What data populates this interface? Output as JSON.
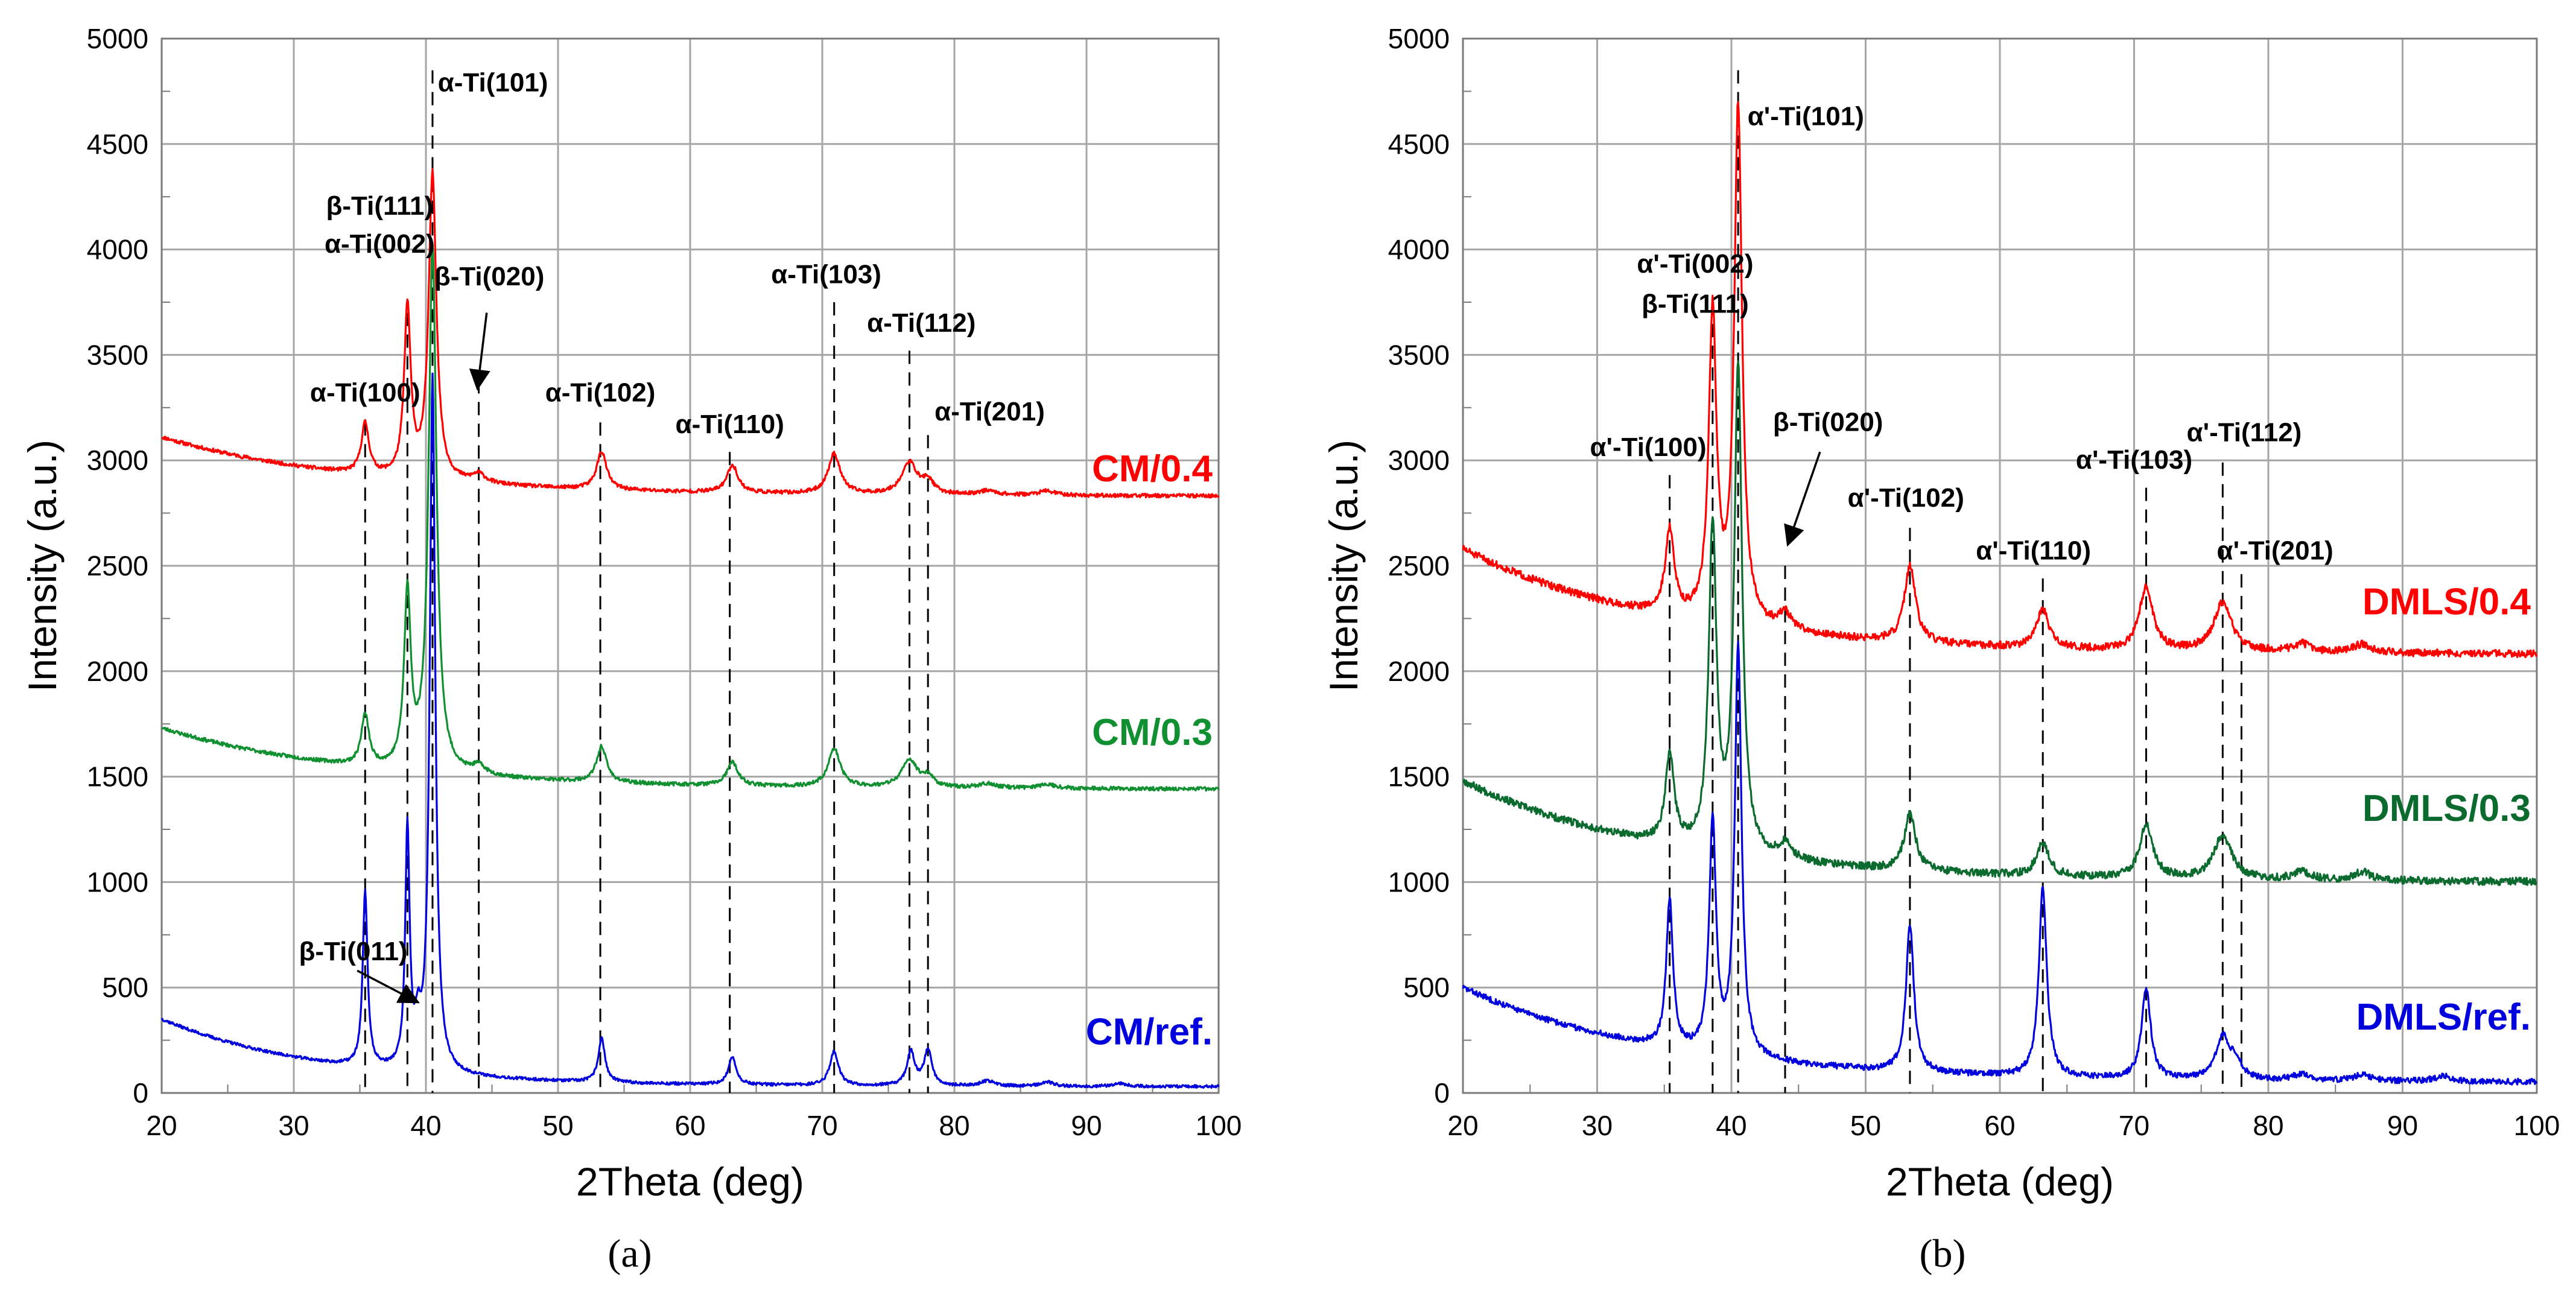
{
  "chart_data": [
    {
      "panel": "(a)",
      "type": "line",
      "xlabel": "2Theta (deg)",
      "ylabel": "Intensity (a.u.)",
      "xlim": [
        20,
        100
      ],
      "ylim": [
        0,
        5000
      ],
      "xticks": [
        20,
        30,
        40,
        50,
        60,
        70,
        80,
        90,
        100
      ],
      "yticks": [
        0,
        500,
        1000,
        1500,
        2000,
        2500,
        3000,
        3500,
        4000,
        4500,
        5000
      ],
      "grid": true,
      "series": [
        {
          "name": "CM/0.4",
          "color": "#ff0000",
          "noise": 9,
          "seed": 11,
          "bg_start": 3110,
          "bg_end": 2830,
          "bg_decay": 15,
          "peaks": [
            [
              35.4,
              240,
              0.35
            ],
            [
              38.6,
              800,
              0.3
            ],
            [
              40.5,
              1450,
              0.35
            ],
            [
              44.0,
              40,
              0.6
            ],
            [
              53.3,
              180,
              0.45
            ],
            [
              63.2,
              130,
              0.5
            ],
            [
              70.9,
              190,
              0.55
            ],
            [
              76.6,
              150,
              0.7
            ],
            [
              78.0,
              60,
              0.5
            ],
            [
              82.5,
              20,
              0.8
            ],
            [
              87.0,
              20,
              0.8
            ]
          ]
        },
        {
          "name": "CM/0.3",
          "color": "#109030",
          "noise": 9,
          "seed": 23,
          "bg_start": 1730,
          "bg_end": 1440,
          "bg_decay": 15,
          "peaks": [
            [
              35.4,
              240,
              0.35
            ],
            [
              38.6,
              820,
              0.3
            ],
            [
              40.5,
              2500,
              0.35
            ],
            [
              44.0,
              40,
              0.6
            ],
            [
              53.3,
              170,
              0.45
            ],
            [
              63.2,
              110,
              0.5
            ],
            [
              70.9,
              180,
              0.55
            ],
            [
              76.6,
              130,
              0.7
            ],
            [
              78.0,
              50,
              0.5
            ],
            [
              82.5,
              20,
              0.8
            ],
            [
              87.0,
              20,
              0.8
            ]
          ]
        },
        {
          "name": "CM/ref.",
          "color": "#0000dd",
          "noise": 7,
          "seed": 37,
          "bg_start": 350,
          "bg_end": 30,
          "bg_decay": 12,
          "peaks": [
            [
              35.4,
              830,
              0.22
            ],
            [
              38.6,
              1130,
              0.2
            ],
            [
              39.4,
              170,
              0.25
            ],
            [
              40.5,
              3300,
              0.25
            ],
            [
              53.3,
              210,
              0.3
            ],
            [
              63.2,
              130,
              0.35
            ],
            [
              70.9,
              160,
              0.4
            ],
            [
              76.7,
              160,
              0.35
            ],
            [
              78.0,
              170,
              0.35
            ],
            [
              82.5,
              25,
              0.6
            ],
            [
              87.0,
              20,
              0.6
            ],
            [
              92.5,
              15,
              0.6
            ]
          ]
        }
      ],
      "peak_labels": [
        {
          "text": "α-Ti(100)",
          "x": 35.4,
          "y": 3280,
          "line_top": 3180,
          "line_bottom": 0,
          "anchor": "middle"
        },
        {
          "text": "β-Ti(111)",
          "x": 36.5,
          "y": 4165,
          "line_top": 3700,
          "line_bottom": 0,
          "line_x": 38.6,
          "anchor": "middle"
        },
        {
          "text": "α-Ti(002)",
          "x": 36.5,
          "y": 3985,
          "anchor": "middle"
        },
        {
          "text": "α-Ti(101)",
          "x": 40.9,
          "y": 4750,
          "line_top": 4850,
          "line_bottom": 0,
          "line_x": 40.5,
          "anchor": "start"
        },
        {
          "text": "β-Ti(020)",
          "x": 44.8,
          "y": 3830,
          "line_top": 3380,
          "line_bottom": 0,
          "line_x": 44.0,
          "anchor": "middle"
        },
        {
          "text": "α-Ti(102)",
          "x": 53.2,
          "y": 3280,
          "line_top": 3180,
          "line_bottom": 0,
          "anchor": "middle"
        },
        {
          "text": "α-Ti(110)",
          "x": 63.0,
          "y": 3130,
          "line_top": 3040,
          "line_bottom": 0,
          "anchor": "middle"
        },
        {
          "text": "α-Ti(103)",
          "x": 70.3,
          "y": 3840,
          "line_top": 3750,
          "line_bottom": 0,
          "line_x": 70.9,
          "anchor": "middle"
        },
        {
          "text": "α-Ti(112)",
          "x": 77.5,
          "y": 3610,
          "line_top": 3520,
          "line_bottom": 0,
          "line_x": 76.6,
          "anchor": "middle"
        },
        {
          "text": "α-Ti(201)",
          "x": 78.5,
          "y": 3190,
          "line_top": 3120,
          "line_bottom": 0,
          "line_x": 78.0,
          "anchor": "start"
        },
        {
          "text": "β-Ti(011)",
          "x": 34.5,
          "y": 630,
          "anchor": "middle"
        }
      ],
      "arrows": [
        {
          "from": [
            44.6,
            3700
          ],
          "to": [
            43.9,
            3340
          ]
        },
        {
          "from": [
            34.8,
            580
          ],
          "to": [
            39.4,
            430
          ]
        }
      ],
      "series_labels": [
        {
          "text": "CM/0.4",
          "y": 2900
        },
        {
          "text": "CM/0.3",
          "y": 1650
        },
        {
          "text": "CM/ref.",
          "y": 230
        }
      ],
      "caption": "(a)"
    },
    {
      "panel": "(b)",
      "type": "line",
      "xlabel": "2Theta (deg)",
      "ylabel": "Intensity (a.u.)",
      "xlim": [
        20,
        100
      ],
      "ylim": [
        0,
        5000
      ],
      "xticks": [
        20,
        30,
        40,
        50,
        60,
        70,
        80,
        90,
        100
      ],
      "yticks": [
        0,
        500,
        1000,
        1500,
        2000,
        2500,
        3000,
        3500,
        4000,
        4500,
        5000
      ],
      "grid": true,
      "series": [
        {
          "name": "DMLS/0.4",
          "color": "#ff0000",
          "noise": 18,
          "seed": 51,
          "bg_start": 2580,
          "bg_end": 2080,
          "bg_decay": 15,
          "peaks": [
            [
              35.4,
              400,
              0.4
            ],
            [
              38.6,
              1450,
              0.35
            ],
            [
              40.5,
              2450,
              0.35
            ],
            [
              44.0,
              80,
              0.6
            ],
            [
              53.3,
              360,
              0.5
            ],
            [
              63.2,
              180,
              0.55
            ],
            [
              70.9,
              300,
              0.6
            ],
            [
              76.6,
              230,
              0.8
            ],
            [
              82.5,
              40,
              0.8
            ],
            [
              87.0,
              40,
              0.8
            ]
          ]
        },
        {
          "name": "DMLS/0.3",
          "color": "#0b6b2e",
          "noise": 18,
          "seed": 67,
          "bg_start": 1480,
          "bg_end": 1000,
          "bg_decay": 15,
          "peaks": [
            [
              35.4,
              420,
              0.4
            ],
            [
              38.6,
              1520,
              0.35
            ],
            [
              40.5,
              2300,
              0.35
            ],
            [
              44.0,
              70,
              0.6
            ],
            [
              53.3,
              270,
              0.5
            ],
            [
              63.2,
              160,
              0.55
            ],
            [
              70.9,
              250,
              0.6
            ],
            [
              76.6,
              210,
              0.8
            ],
            [
              82.5,
              40,
              0.8
            ],
            [
              87.0,
              40,
              0.8
            ]
          ]
        },
        {
          "name": "DMLS/ref.",
          "color": "#0000dd",
          "noise": 14,
          "seed": 83,
          "bg_start": 500,
          "bg_end": 50,
          "bg_decay": 15,
          "peaks": [
            [
              35.4,
              700,
              0.3
            ],
            [
              38.6,
              1100,
              0.3
            ],
            [
              40.5,
              1950,
              0.3
            ],
            [
              53.3,
              700,
              0.35
            ],
            [
              63.2,
              900,
              0.35
            ],
            [
              70.9,
              430,
              0.4
            ],
            [
              76.6,
              200,
              0.6
            ],
            [
              77.6,
              80,
              0.5
            ],
            [
              82.5,
              30,
              0.8
            ],
            [
              87.0,
              30,
              0.8
            ],
            [
              93.0,
              25,
              0.8
            ]
          ]
        }
      ],
      "peak_labels": [
        {
          "text": "α'-Ti(101)",
          "x": 41.2,
          "y": 4590,
          "line_top": 4850,
          "line_bottom": 0,
          "line_x": 40.5,
          "anchor": "start"
        },
        {
          "text": "α'-Ti(002)",
          "x": 37.3,
          "y": 3890,
          "line_top": 3750,
          "line_bottom": 0,
          "line_x": 38.6,
          "anchor": "middle"
        },
        {
          "text": "β-Ti(111)",
          "x": 37.3,
          "y": 3700,
          "anchor": "middle"
        },
        {
          "text": "α'-Ti(100)",
          "x": 33.8,
          "y": 3020,
          "line_top": 2930,
          "line_bottom": 0,
          "line_x": 35.4,
          "anchor": "middle"
        },
        {
          "text": "β-Ti(020)",
          "x": 47.2,
          "y": 3140,
          "line_top": 2500,
          "line_bottom": 0,
          "line_x": 44.0,
          "anchor": "middle"
        },
        {
          "text": "α'-Ti(102)",
          "x": 53.0,
          "y": 2780,
          "line_top": 2680,
          "line_bottom": 0,
          "line_x": 53.3,
          "anchor": "middle"
        },
        {
          "text": "α'-Ti(110)",
          "x": 62.5,
          "y": 2530,
          "line_top": 2440,
          "line_bottom": 0,
          "line_x": 63.2,
          "anchor": "middle"
        },
        {
          "text": "α'-Ti(103)",
          "x": 70.0,
          "y": 2960,
          "line_top": 2870,
          "line_bottom": 0,
          "line_x": 70.9,
          "anchor": "middle"
        },
        {
          "text": "α'-Ti(112)",
          "x": 78.2,
          "y": 3090,
          "line_top": 2990,
          "line_bottom": 0,
          "line_x": 76.6,
          "anchor": "middle"
        },
        {
          "text": "α'-Ti(201)",
          "x": 80.5,
          "y": 2530,
          "line_top": 2460,
          "line_bottom": 0,
          "line_x": 78.0,
          "anchor": "middle"
        }
      ],
      "arrows": [
        {
          "from": [
            46.6,
            3040
          ],
          "to": [
            44.2,
            2600
          ]
        }
      ],
      "series_labels": [
        {
          "text": "DMLS/0.4",
          "y": 2270
        },
        {
          "text": "DMLS/0.3",
          "y": 1290
        },
        {
          "text": "DMLS/ref.",
          "y": 300
        }
      ],
      "caption": "(b)"
    }
  ]
}
